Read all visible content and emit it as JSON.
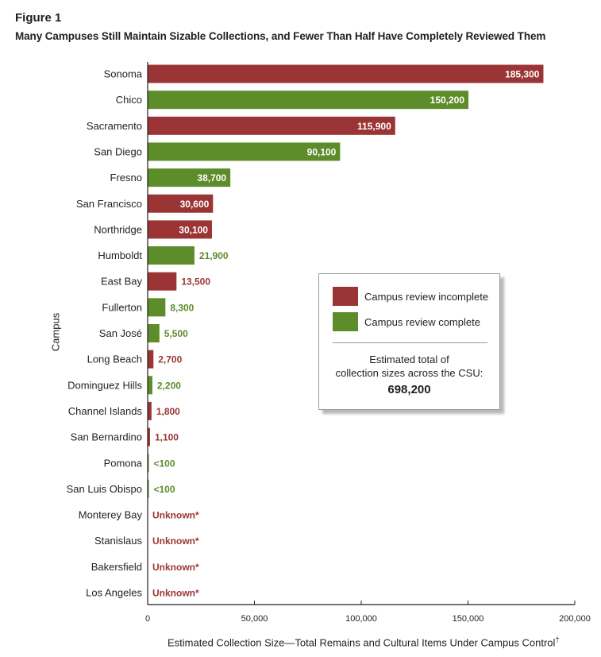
{
  "figure_label": "Figure 1",
  "title": "Many Campuses Still Maintain Sizable Collections, and Fewer Than Half Have Completely Reviewed Them",
  "colors": {
    "incomplete": "#9b3535",
    "complete": "#5d8c2a",
    "axis": "#231f20"
  },
  "legend": {
    "incomplete_label": "Campus review incomplete",
    "complete_label": "Campus review complete",
    "note_line1": "Estimated total of",
    "note_line2": "collection sizes across the CSU:",
    "total": "698,200"
  },
  "xlabel_text": "Estimated Collection Size—Total Remains and Cultural Items Under Campus Control",
  "xlabel_dagger": "†",
  "chart_data": {
    "type": "bar",
    "orientation": "horizontal",
    "xlabel": "Estimated Collection Size—Total Remains and Cultural Items Under Campus Control†",
    "ylabel": "Campus",
    "xlim": [
      0,
      200000
    ],
    "xticks": [
      0,
      50000,
      100000,
      150000,
      200000
    ],
    "xtick_labels": [
      "0",
      "50,000",
      "100,000",
      "150,000",
      "200,000"
    ],
    "grid": false,
    "legend_position": "center-right",
    "categories": [
      "Sonoma",
      "Chico",
      "Sacramento",
      "San Diego",
      "Fresno",
      "San Francisco",
      "Northridge",
      "Humboldt",
      "East Bay",
      "Fullerton",
      "San José",
      "Long Beach",
      "Dominguez Hills",
      "Channel Islands",
      "San Bernardino",
      "Pomona",
      "San Luis Obispo",
      "Monterey Bay",
      "Stanislaus",
      "Bakersfield",
      "Los Angeles"
    ],
    "values": [
      185300,
      150200,
      115900,
      90100,
      38700,
      30600,
      30100,
      21900,
      13500,
      8300,
      5500,
      2700,
      2200,
      1800,
      1100,
      100,
      100,
      null,
      null,
      null,
      null
    ],
    "labels": [
      "185,300",
      "150,200",
      "115,900",
      "90,100",
      "38,700",
      "30,600",
      "30,100",
      "21,900",
      "13,500",
      "8,300",
      "5,500",
      "2,700",
      "2,200",
      "1,800",
      "1,100",
      "<100",
      "<100",
      "Unknown*",
      "Unknown*",
      "Unknown*",
      "Unknown*"
    ],
    "status": [
      "incomplete",
      "complete",
      "incomplete",
      "complete",
      "complete",
      "incomplete",
      "incomplete",
      "complete",
      "incomplete",
      "complete",
      "complete",
      "incomplete",
      "complete",
      "incomplete",
      "incomplete",
      "complete",
      "complete",
      "incomplete",
      "incomplete",
      "incomplete",
      "incomplete"
    ]
  }
}
